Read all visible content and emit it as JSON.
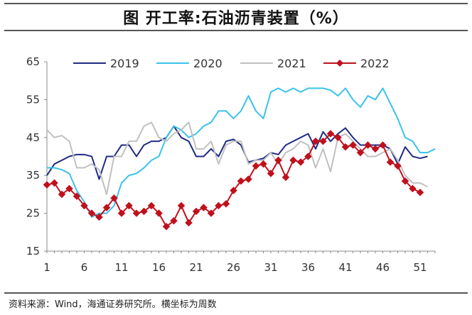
{
  "header": {
    "title": "图    开工率:石油沥青装置（%）"
  },
  "footer": {
    "source": "资料来源：Wind，海通证券研究所。横坐标为周数"
  },
  "colors": {
    "y2019": "#1f2a86",
    "y2020": "#39c3ea",
    "y2021": "#c0c0c0",
    "y2022": "#c0101c"
  },
  "chart_data": {
    "type": "line",
    "title": "开工率:石油沥青装置（%）",
    "xlabel": "",
    "ylabel": "",
    "xlim": [
      1,
      53
    ],
    "ylim": [
      15,
      65
    ],
    "xticks": [
      1,
      6,
      11,
      16,
      21,
      26,
      31,
      36,
      41,
      46,
      51
    ],
    "yticks": [
      15,
      25,
      35,
      45,
      55,
      65
    ],
    "legend_position": "top",
    "series": [
      {
        "name": "2019",
        "color": "#1f2a86",
        "marker": "none",
        "values": [
          35,
          38,
          39,
          40,
          40.5,
          40.5,
          40,
          34,
          40,
          40,
          43,
          43,
          40,
          43,
          44,
          44,
          45,
          48,
          45,
          44,
          40,
          40,
          42,
          40,
          44,
          44.5,
          43,
          38.5,
          39,
          39.5,
          41,
          40.5,
          43,
          44,
          45,
          46,
          42,
          46.5,
          44,
          46,
          47.5,
          45,
          43,
          43,
          43,
          43,
          42,
          38,
          42.5,
          40,
          39.5,
          40
        ]
      },
      {
        "name": "2020",
        "color": "#39c3ea",
        "marker": "none",
        "values": [
          37,
          37,
          36.5,
          35.5,
          31,
          28,
          24,
          25,
          25,
          27,
          33,
          35,
          35.5,
          37,
          39,
          40,
          45,
          48,
          47,
          45,
          46,
          48,
          49,
          52,
          52,
          50,
          52,
          56,
          52,
          50,
          57,
          58,
          57,
          58,
          57,
          58,
          58,
          58,
          57.5,
          56,
          58,
          55,
          53,
          56,
          55,
          58,
          54,
          50,
          45,
          44,
          41,
          41,
          42
        ]
      },
      {
        "name": "2021",
        "color": "#c0c0c0",
        "marker": "none",
        "values": [
          47,
          45,
          45.5,
          44,
          37,
          37,
          38,
          36.5,
          30,
          40,
          40,
          44,
          44,
          48,
          49,
          45,
          44,
          46,
          47,
          49,
          42,
          42,
          44,
          38,
          43,
          44,
          44,
          38,
          39,
          39,
          41,
          38,
          41,
          42,
          44,
          43,
          37,
          42,
          36,
          45,
          46,
          44,
          42,
          40,
          40,
          41,
          42,
          39,
          35,
          33,
          33,
          32
        ]
      },
      {
        "name": "2022",
        "color": "#c0101c",
        "marker": "diamond",
        "values": [
          32.5,
          33,
          30,
          31.5,
          29.5,
          27,
          25,
          24,
          26.5,
          29,
          25,
          27,
          25,
          25.5,
          27,
          25,
          21.5,
          23,
          27,
          22.5,
          25.5,
          26.5,
          25,
          27,
          27.5,
          31,
          33.5,
          34,
          37.5,
          38,
          35.5,
          39,
          34.5,
          39,
          38.5,
          40,
          44,
          44,
          46,
          45,
          42.5,
          43,
          41,
          43,
          42,
          43,
          38.5,
          37.5,
          33.5,
          31.5,
          30.5
        ]
      }
    ]
  }
}
